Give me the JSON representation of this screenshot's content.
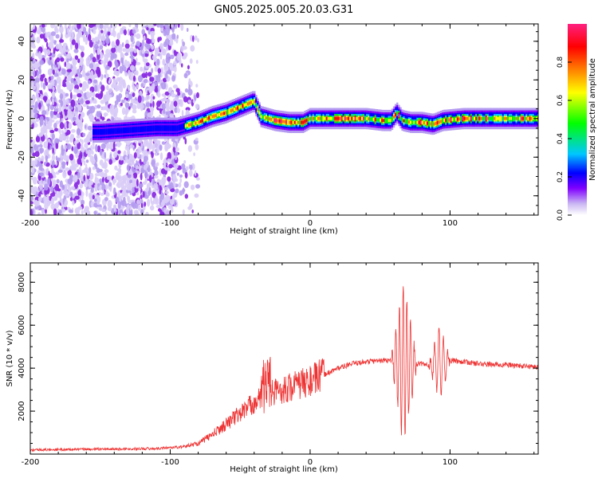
{
  "title": "GN05.2025.005.20.03.G31",
  "chart_data": [
    {
      "type": "heatmap",
      "xlabel": "Height of straight line (km)",
      "ylabel": "Frequency (Hz)",
      "xlim": [
        -200,
        163
      ],
      "ylim": [
        -50,
        49
      ],
      "xticks": [
        -200,
        -100,
        0,
        100
      ],
      "yticks": [
        -40,
        -20,
        0,
        20,
        40
      ],
      "ridge": {
        "x": [
          -150,
          -130,
          -110,
          -95,
          -90,
          -80,
          -70,
          -60,
          -50,
          -40,
          -35,
          -25,
          -15,
          -5,
          0,
          20,
          40,
          52,
          58,
          62,
          66,
          72,
          80,
          88,
          95,
          110,
          130,
          163
        ],
        "y": [
          -7,
          -6,
          -5,
          -5,
          -4,
          -2,
          1,
          3,
          6,
          9,
          1,
          -1,
          -2,
          -2,
          0,
          0,
          0,
          -1,
          -1,
          3,
          -1,
          -2,
          -2,
          -3,
          -1,
          0,
          0,
          0
        ]
      },
      "colorbar": {
        "label": "Normalized spectral amplitude",
        "range": [
          0,
          1
        ],
        "ticks": [
          "0.0",
          "0.2",
          "0.4",
          "0.6",
          "0.8"
        ],
        "colors": [
          "#ffffff",
          "#b49bf0",
          "#8000ff",
          "#0000ff",
          "#00c8ff",
          "#00ff00",
          "#ffff00",
          "#ff8000",
          "#ff0000",
          "#ff2080"
        ]
      }
    },
    {
      "type": "line",
      "xlabel": "Height of straight line (km)",
      "ylabel": "SNR (10 * v/v)",
      "xlim": [
        -200,
        163
      ],
      "ylim": [
        0,
        8900
      ],
      "xticks": [
        -200,
        -100,
        0,
        100
      ],
      "yticks": [
        2000,
        4000,
        6000,
        8000
      ],
      "color": "#ee3333",
      "envelope": {
        "x": [
          -200,
          -150,
          -110,
          -90,
          -80,
          -70,
          -60,
          -50,
          -40,
          -30,
          -20,
          -10,
          0,
          10,
          20,
          30,
          40,
          50,
          55,
          60,
          62,
          65,
          70,
          75,
          80,
          85,
          90,
          95,
          100,
          110,
          120,
          140,
          163
        ],
        "y": [
          200,
          230,
          260,
          350,
          500,
          900,
          1400,
          1900,
          2400,
          2800,
          3000,
          3200,
          3400,
          3700,
          4000,
          4200,
          4300,
          4350,
          4350,
          4350,
          4300,
          4200,
          4200,
          4200,
          4200,
          4100,
          4200,
          4300,
          4350,
          4300,
          4200,
          4150,
          4050
        ]
      }
    }
  ]
}
